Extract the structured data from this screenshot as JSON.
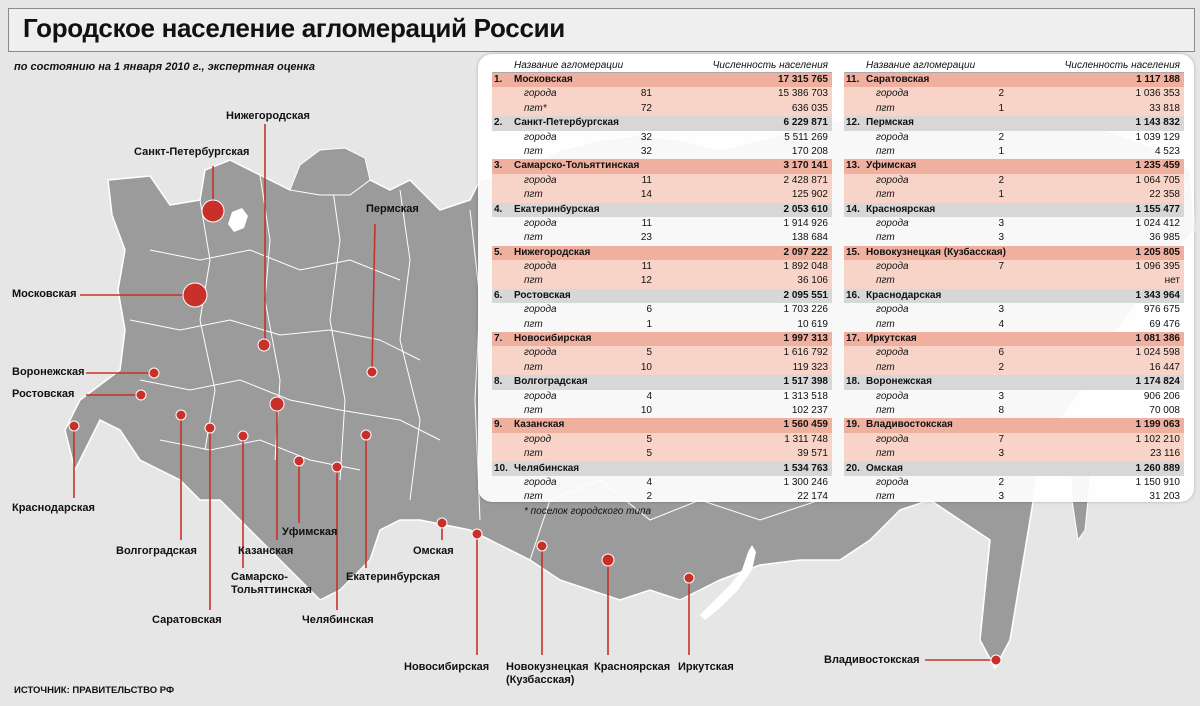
{
  "title": "Городское население агломераций России",
  "subtitle": "по состоянию на 1 января 2010 г., экспертная оценка",
  "source": "ИСТОЧНИК: ПРАВИТЕЛЬСТВО РФ",
  "footnote": "* поселок городского типа",
  "colors": {
    "accent": "#c8312a",
    "map": "#9b9b9b",
    "row_pink_main": "#f0b0a0",
    "row_pink_sub": "#f7d3c8",
    "row_gray_main": "#d7d7d7",
    "row_gray_sub": "#ededed"
  },
  "map_labels": [
    "Нижегородская",
    "Санкт-Петербургская",
    "Пермская",
    "Московская",
    "Воронежская",
    "Ростовская",
    "Краснодарская",
    "Волгоградская",
    "Саратовская",
    "Казанская",
    "Самарско-",
    "Тольяттинская",
    "Уфимская",
    "Челябинская",
    "Екатеринбурская",
    "Омская",
    "Новосибирская",
    "Новокузнецкая",
    "(Кузбасская)",
    "Красноярская",
    "Иркутская",
    "Владивостокская"
  ],
  "chart_data": {
    "type": "table",
    "columns": [
      "Название агломерации",
      "Численность населения"
    ],
    "sub_labels": {
      "cities": "города",
      "city": "город",
      "pgt": "пгт",
      "pgt_note": "пгт*"
    },
    "rows": [
      {
        "rank": "1.",
        "name": "Московская",
        "population": "17 315 765",
        "cities_count": "81",
        "cities_pop": "15 386 703",
        "pgt_count": "72",
        "pgt_pop": "636 035"
      },
      {
        "rank": "2.",
        "name": "Санкт-Петербургская",
        "population": "6 229 871",
        "cities_count": "32",
        "cities_pop": "5 511 269",
        "pgt_count": "32",
        "pgt_pop": "170 208"
      },
      {
        "rank": "3.",
        "name": "Самарско-Тольяттинская",
        "population": "3 170 141",
        "cities_count": "11",
        "cities_pop": "2 428 871",
        "pgt_count": "14",
        "pgt_pop": "125 902"
      },
      {
        "rank": "4.",
        "name": "Екатеринбурская",
        "population": "2 053 610",
        "cities_count": "11",
        "cities_pop": "1 914 926",
        "pgt_count": "23",
        "pgt_pop": "138 684"
      },
      {
        "rank": "5.",
        "name": "Нижегородская",
        "population": "2 097 222",
        "cities_count": "11",
        "cities_pop": "1 892 048",
        "pgt_count": "12",
        "pgt_pop": "36 106"
      },
      {
        "rank": "6.",
        "name": "Ростовская",
        "population": "2 095 551",
        "cities_count": "6",
        "cities_pop": "1 703 226",
        "pgt_count": "1",
        "pgt_pop": "10 619"
      },
      {
        "rank": "7.",
        "name": "Новосибирская",
        "population": "1 997 313",
        "cities_count": "5",
        "cities_pop": "1 616 792",
        "pgt_count": "10",
        "pgt_pop": "119 323"
      },
      {
        "rank": "8.",
        "name": "Волгоградская",
        "population": "1 517 398",
        "cities_count": "4",
        "cities_pop": "1 313 518",
        "pgt_count": "10",
        "pgt_pop": "102 237"
      },
      {
        "rank": "9.",
        "name": "Казанская",
        "population": "1 560 459",
        "cities_count": "5",
        "cities_pop": "1 311 748",
        "pgt_count": "5",
        "pgt_pop": "39 571"
      },
      {
        "rank": "10.",
        "name": "Челябинская",
        "population": "1 534 763",
        "cities_count": "4",
        "cities_pop": "1 300 246",
        "pgt_count": "2",
        "pgt_pop": "22 174"
      },
      {
        "rank": "11.",
        "name": "Саратовская",
        "population": "1 117 188",
        "cities_count": "2",
        "cities_pop": "1 036 353",
        "pgt_count": "1",
        "pgt_pop": "33 818"
      },
      {
        "rank": "12.",
        "name": "Пермская",
        "population": "1 143 832",
        "cities_count": "2",
        "cities_pop": "1 039 129",
        "pgt_count": "1",
        "pgt_pop": "4 523"
      },
      {
        "rank": "13.",
        "name": "Уфимская",
        "population": "1 235 459",
        "cities_count": "2",
        "cities_pop": "1 064 705",
        "pgt_count": "1",
        "pgt_pop": "22 358"
      },
      {
        "rank": "14.",
        "name": "Красноярская",
        "population": "1 155 477",
        "cities_count": "3",
        "cities_pop": "1 024 412",
        "pgt_count": "3",
        "pgt_pop": "36 985"
      },
      {
        "rank": "15.",
        "name": "Новокузнецкая (Кузбасская)",
        "population": "1 205 805",
        "cities_count": "7",
        "cities_pop": "1 096 395",
        "pgt_count": "",
        "pgt_pop": "нет"
      },
      {
        "rank": "16.",
        "name": "Краснодарская",
        "population": "1 343 964",
        "cities_count": "3",
        "cities_pop": "976 675",
        "pgt_count": "4",
        "pgt_pop": "69 476"
      },
      {
        "rank": "17.",
        "name": "Иркутская",
        "population": "1 081 386",
        "cities_count": "6",
        "cities_pop": "1 024 598",
        "pgt_count": "2",
        "pgt_pop": "16 447"
      },
      {
        "rank": "18.",
        "name": "Воронежская",
        "population": "1 174 824",
        "cities_count": "3",
        "cities_pop": "906 206",
        "pgt_count": "8",
        "pgt_pop": "70 008"
      },
      {
        "rank": "19.",
        "name": "Владивостокская",
        "population": "1 199 063",
        "cities_count": "7",
        "cities_pop": "1 102 210",
        "pgt_count": "3",
        "pgt_pop": "23 116"
      },
      {
        "rank": "20.",
        "name": "Омская",
        "population": "1 260 889",
        "cities_count": "2",
        "cities_pop": "1 150 910",
        "pgt_count": "3",
        "pgt_pop": "31 203"
      }
    ]
  }
}
